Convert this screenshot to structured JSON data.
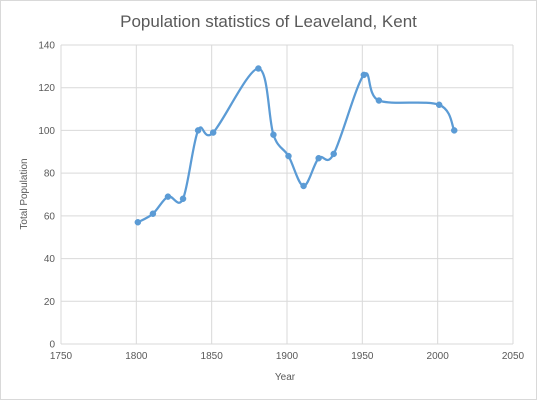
{
  "chart_data": {
    "type": "scatter",
    "title": "Population statistics of Leaveland, Kent",
    "xlabel": "Year",
    "ylabel": "Total Population",
    "xlim": [
      1750,
      2050
    ],
    "ylim": [
      0,
      140
    ],
    "x_ticks": [
      1750,
      1800,
      1850,
      1900,
      1950,
      2000,
      2050
    ],
    "y_ticks": [
      0,
      20,
      40,
      60,
      80,
      100,
      120,
      140
    ],
    "grid": "vertical and horizontal",
    "legend": "none",
    "smooth": true,
    "series": [
      {
        "color": "#5b9bd5",
        "x": [
          1801,
          1811,
          1821,
          1831,
          1841,
          1851,
          1881,
          1891,
          1901,
          1911,
          1921,
          1931,
          1951,
          1961,
          2001,
          2011
        ],
        "y": [
          57,
          61,
          69,
          68,
          100,
          99,
          129,
          98,
          88,
          74,
          87,
          89,
          126,
          114,
          112,
          100
        ]
      }
    ]
  }
}
